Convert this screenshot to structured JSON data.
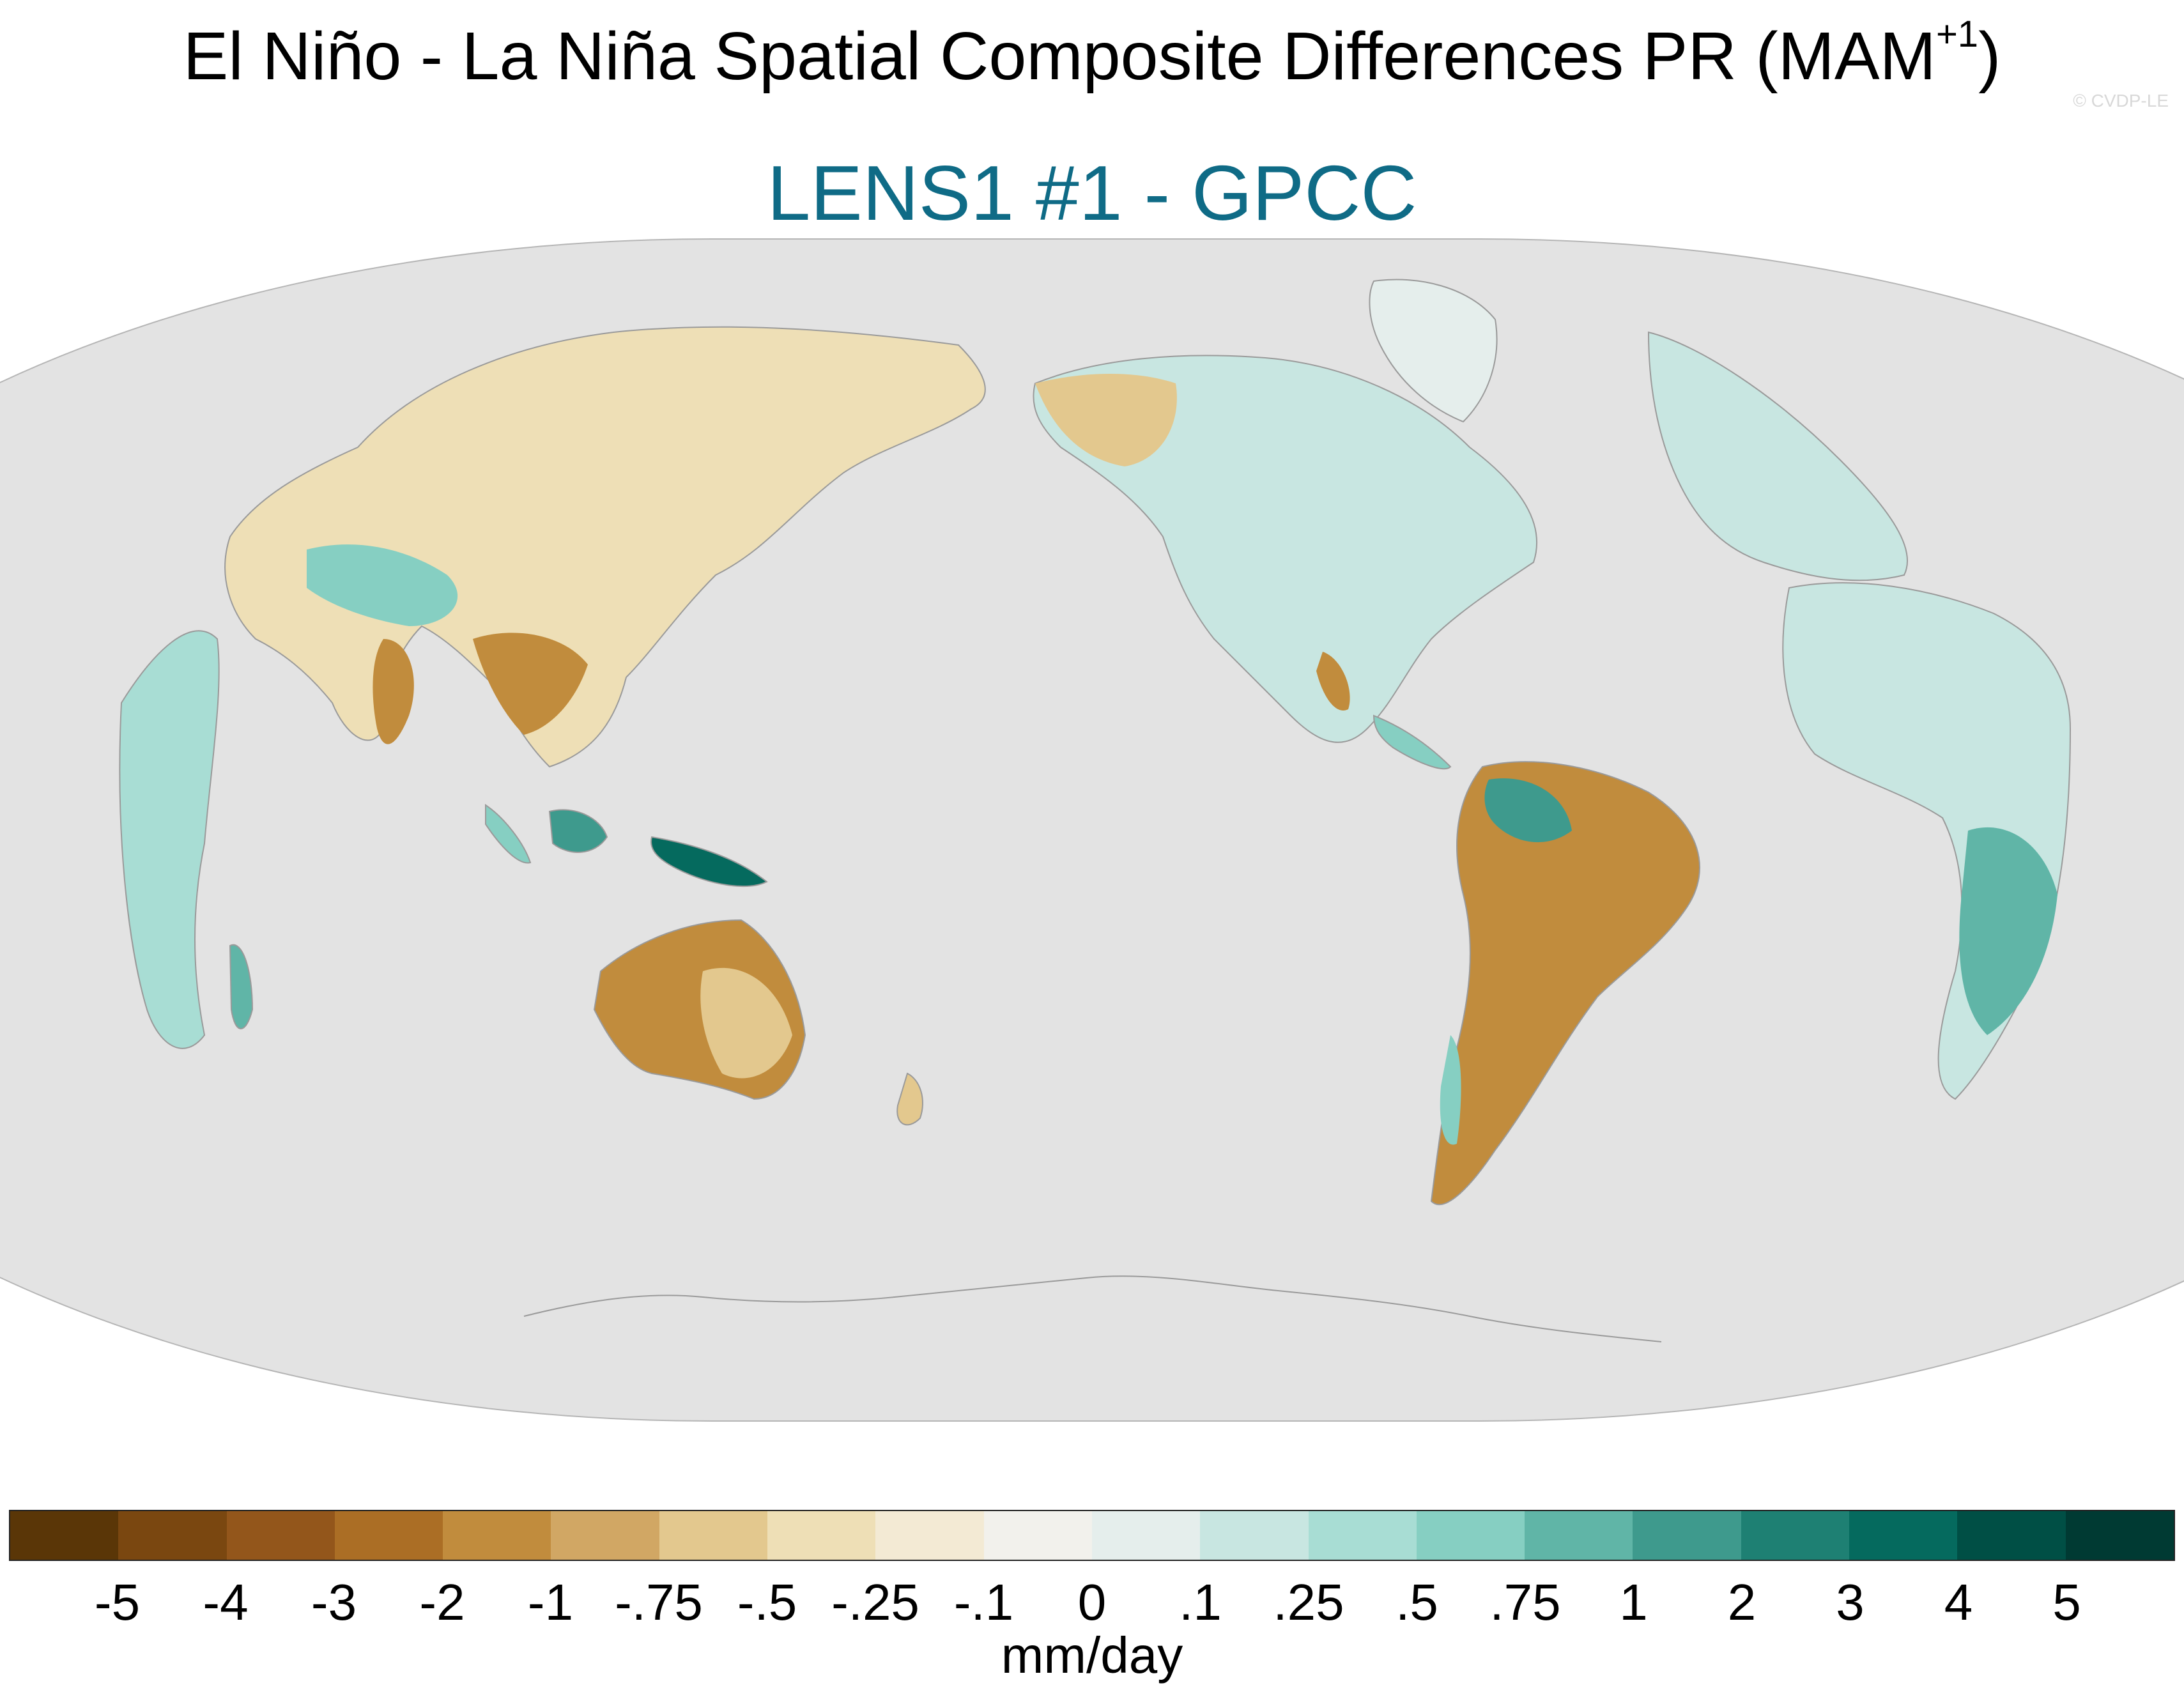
{
  "header": {
    "title": "El Niño - La Niña Spatial Composite Differences PR (MAM",
    "title_superscript": "+1",
    "title_close": ")",
    "subtitle": "LENS1 #1 - GPCC",
    "watermark": "© CVDP-LE"
  },
  "colors": {
    "ocean_fill": "#e3e3e3",
    "coast_line": "#9a9a9a",
    "subtitle": "#0f6b86"
  },
  "colorbar": {
    "colors": [
      "#5a3607",
      "#7a4710",
      "#93561b",
      "#ab6e25",
      "#c18c3d",
      "#d1a764",
      "#e3c88e",
      "#eedfb6",
      "#f3ead4",
      "#f2f1ec",
      "#e5eeec",
      "#c8e6e1",
      "#a8ddd4",
      "#86cfc2",
      "#60b5a7",
      "#3e9a8d",
      "#1e8073",
      "#056a5e",
      "#004f45",
      "#003a33"
    ],
    "labels": [
      "-5",
      "-4",
      "-3",
      "-2",
      "-1",
      "-.75",
      "-.5",
      "-.25",
      "-.1",
      "0",
      ".1",
      ".25",
      ".5",
      ".75",
      "1",
      "2",
      "3",
      "4",
      "5"
    ],
    "units": "mm/day"
  }
}
